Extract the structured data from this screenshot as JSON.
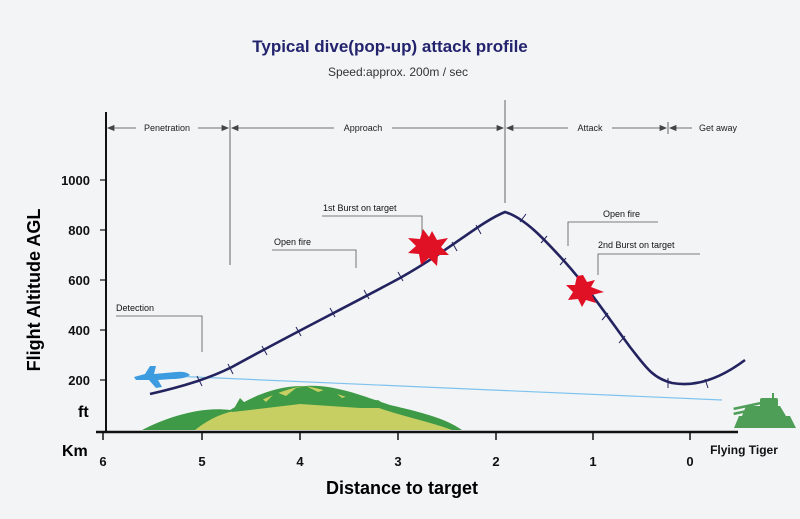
{
  "title": "Typical dive(pop-up) attack  profile",
  "subtitle": "Speed:approx. 200m / sec",
  "phases": [
    "Penetration",
    "Approach",
    "Attack",
    "Get away"
  ],
  "annotations": {
    "detection": "Detection",
    "open_fire_1": "Open fire",
    "burst_1": "1st Burst on target",
    "open_fire_2": "Open fire",
    "burst_2": "2nd Burst on target"
  },
  "y_axis": {
    "title": "Flight Altitude AGL",
    "unit": "ft",
    "ticks": [
      "1000",
      "800",
      "600",
      "400",
      "200"
    ]
  },
  "x_axis": {
    "title": "Distance to target",
    "unit": "Km",
    "ticks": [
      "6",
      "5",
      "4",
      "3",
      "2",
      "1",
      "0"
    ]
  },
  "target_label": "Flying Tiger",
  "colors": {
    "flight_path": "#23235f",
    "burst": "#e01025",
    "aircraft": "#3d9be0",
    "sight_line": "#7ec3ee",
    "hill_light": "#c7cf63",
    "hill_dark": "#3e9a46",
    "tank": "#4f9e57"
  },
  "chart_data": {
    "type": "line",
    "title": "Typical dive(pop-up) attack  profile",
    "xlabel": "Distance to target",
    "ylabel": "Flight Altitude AGL",
    "xlim": [
      6,
      0
    ],
    "ylim": [
      0,
      1000
    ],
    "series": [
      {
        "x": [
          5.5,
          5.0,
          4.5,
          4.0,
          3.5,
          3.0,
          2.5,
          2.2,
          1.95,
          1.8,
          1.5,
          1.2,
          0.9,
          0.6,
          0.45,
          0.3,
          0.1,
          -0.1,
          -0.5
        ],
        "y": [
          140,
          180,
          255,
          350,
          445,
          540,
          640,
          730,
          870,
          860,
          770,
          630,
          490,
          300,
          210,
          190,
          185,
          200,
          280
        ]
      }
    ]
  }
}
